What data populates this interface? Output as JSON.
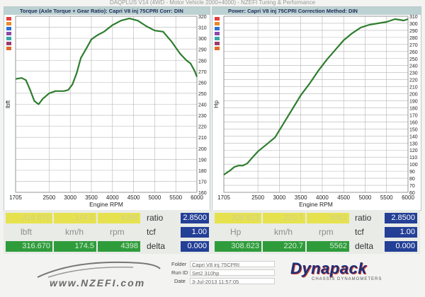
{
  "header": {
    "title": "DAQPLUS V14 (4WD - Motor Vehicle 2000+4000) - NZEFI Tuning & Performance"
  },
  "charts": {
    "torque": {
      "title": "Torque (Axle Torque + Gear Ratio): Capri V8 inj 75CPRI     Corr: DIN"
    },
    "power": {
      "title": "Power: Capri V8 inj 75CPRI     Correction Method: DIN"
    }
  },
  "chart_data": [
    {
      "type": "line",
      "title": "Torque (Axle Torque + Gear Ratio): Capri V8 inj 75CPRI     Corr: DIN",
      "xlabel": "Engine RPM",
      "ylabel": "lbft",
      "xlim": [
        1705,
        6000
      ],
      "ylim": [
        160,
        320
      ],
      "xticks": [
        "1705",
        "2500",
        "3000",
        "3500",
        "4000",
        "4500",
        "5000",
        "5500",
        "6000"
      ],
      "yticks": [
        "160",
        "170",
        "180",
        "190",
        "200",
        "210",
        "220",
        "230",
        "240",
        "250",
        "260",
        "270",
        "280",
        "290",
        "300",
        "310",
        "320"
      ],
      "grid": true,
      "color": "#2e7d2e",
      "series": [
        {
          "x": [
            1705,
            1850,
            1950,
            2050,
            2150,
            2250,
            2350,
            2500,
            2650,
            2750,
            2850,
            2950,
            3050,
            3150,
            3250,
            3400,
            3500,
            3650,
            3800,
            4000,
            4200,
            4400,
            4600,
            4800,
            5000,
            5200,
            5400,
            5600,
            5750,
            5850,
            5950,
            6000
          ],
          "y": [
            263,
            264,
            262,
            253,
            243,
            240,
            245,
            250,
            252,
            252,
            252,
            253,
            258,
            268,
            282,
            292,
            299,
            303,
            306,
            312,
            316,
            318,
            316,
            311,
            307,
            306,
            297,
            286,
            280,
            277,
            270,
            265
          ]
        }
      ]
    },
    {
      "type": "line",
      "title": "Power: Capri V8 inj 75CPRI     Correction Method: DIN",
      "xlabel": "Engine RPM",
      "ylabel": "Hp",
      "xlim": [
        1705,
        6000
      ],
      "ylim": [
        60,
        310
      ],
      "xticks": [
        "1705",
        "2500",
        "3000",
        "3500",
        "4000",
        "4500",
        "5000",
        "5500",
        "6000"
      ],
      "yticks": [
        "60",
        "70",
        "80",
        "90",
        "100",
        "110",
        "120",
        "130",
        "140",
        "150",
        "160",
        "170",
        "180",
        "190",
        "200",
        "210",
        "220",
        "230",
        "240",
        "250",
        "260",
        "270",
        "280",
        "290",
        "300",
        "310"
      ],
      "grid": true,
      "color": "#2e7d2e",
      "series": [
        {
          "x": [
            1705,
            1850,
            1950,
            2050,
            2150,
            2250,
            2350,
            2500,
            2700,
            2900,
            3100,
            3300,
            3500,
            3700,
            3900,
            4100,
            4300,
            4500,
            4700,
            4900,
            5100,
            5300,
            5500,
            5700,
            5800,
            5900,
            6000
          ],
          "y": [
            85,
            91,
            96,
            98,
            98,
            101,
            108,
            118,
            128,
            138,
            158,
            178,
            198,
            214,
            232,
            248,
            262,
            276,
            286,
            294,
            298,
            300,
            302,
            306,
            305,
            304,
            306
          ]
        }
      ]
    }
  ],
  "readouts": {
    "max_row": {
      "torque": "316.670",
      "speed": "174.5",
      "rpm": "4398",
      "power": "308.623",
      "power_speed": "220.7",
      "power_rpm": "5562"
    },
    "units": {
      "torque": "lbft",
      "speed": "km/h",
      "rpm": "rpm",
      "power": "Hp",
      "power_speed": "km/h",
      "power_rpm": "rpm"
    },
    "delta_row": {
      "torque": "316.670",
      "speed": "174.5",
      "rpm": "4398",
      "power": "308.623",
      "power_speed": "220.7",
      "power_rpm": "5562"
    },
    "labels": {
      "ratio": "ratio",
      "tcf": "tcf",
      "delta": "delta"
    },
    "left": {
      "ratio": "2.8500",
      "tcf": "1.00",
      "delta": "0.000"
    },
    "right": {
      "ratio": "2.8500",
      "tcf": "1.00",
      "delta": "0.000"
    }
  },
  "info": {
    "folder_label": "Folder",
    "folder_value": "Capri V8 inj 75CPRI",
    "runid_label": "Run ID",
    "runid_value": "Set2 310hp",
    "date_label": "Date",
    "date_value": "3-Jul-2013 11:57:05"
  },
  "brand": {
    "website": "www.NZEFI.com",
    "logo_main": "Dynapack",
    "logo_sub": "CHASSIS DYNAMOMETERS"
  },
  "colors": {
    "line": "#2e7d2e",
    "grid": "#b4b4b4",
    "panel_title": "#bcd2d2"
  },
  "swatches": [
    "#e43d3d",
    "#e88a2a",
    "#2f6fd6",
    "#8b4aa6",
    "#3aa6a6",
    "#9b3b6b",
    "#e06a2a"
  ]
}
